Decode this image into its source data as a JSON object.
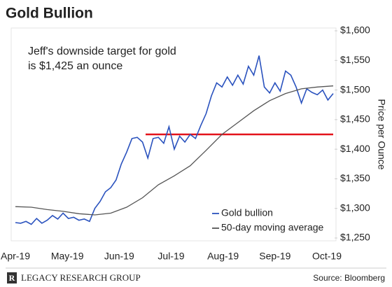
{
  "chart_data": {
    "type": "line",
    "title": "Gold Bullion",
    "annotation": [
      "Jeff's downside target for gold",
      "is $1,425 an ounce"
    ],
    "y_axis_label": "Price per Ounce",
    "xticks": [
      "Apr-19",
      "May-19",
      "Jun-19",
      "Jul-19",
      "Aug-19",
      "Sep-19",
      "Oct-19"
    ],
    "ylim": [
      1250,
      1600
    ],
    "yticks": [
      {
        "value": 1250,
        "label": "$1,250"
      },
      {
        "value": 1300,
        "label": "$1,300"
      },
      {
        "value": 1350,
        "label": "$1,350"
      },
      {
        "value": 1400,
        "label": "$1,400"
      },
      {
        "value": 1450,
        "label": "$1,450"
      },
      {
        "value": 1500,
        "label": "$1,500"
      },
      {
        "value": 1550,
        "label": "$1,550"
      },
      {
        "value": 1600,
        "label": "$1,600"
      }
    ],
    "series": [
      {
        "name": "Gold bullion",
        "color": "#2a52be",
        "values": [
          1276,
          1275,
          1278,
          1273,
          1283,
          1275,
          1280,
          1288,
          1282,
          1292,
          1283,
          1285,
          1280,
          1282,
          1278,
          1300,
          1312,
          1328,
          1335,
          1348,
          1375,
          1395,
          1418,
          1420,
          1412,
          1385,
          1418,
          1420,
          1410,
          1438,
          1400,
          1422,
          1412,
          1425,
          1418,
          1440,
          1460,
          1490,
          1512,
          1505,
          1522,
          1508,
          1525,
          1510,
          1540,
          1525,
          1558,
          1505,
          1495,
          1512,
          1498,
          1532,
          1525,
          1505,
          1478,
          1502,
          1496,
          1492,
          1500,
          1483,
          1494
        ]
      },
      {
        "name": "50-day moving average",
        "color": "#555555",
        "values": [
          1303,
          1302,
          1298,
          1295,
          1291,
          1289,
          1292,
          1302,
          1318,
          1340,
          1355,
          1372,
          1398,
          1425,
          1445,
          1465,
          1482,
          1494,
          1502,
          1505,
          1507
        ]
      }
    ],
    "target": {
      "value": 1425,
      "color": "#e3121b"
    },
    "legend": "lower right",
    "footer": {
      "brand": "LEGACY RESEARCH GROUP",
      "source": "Source: Bloomberg"
    }
  }
}
